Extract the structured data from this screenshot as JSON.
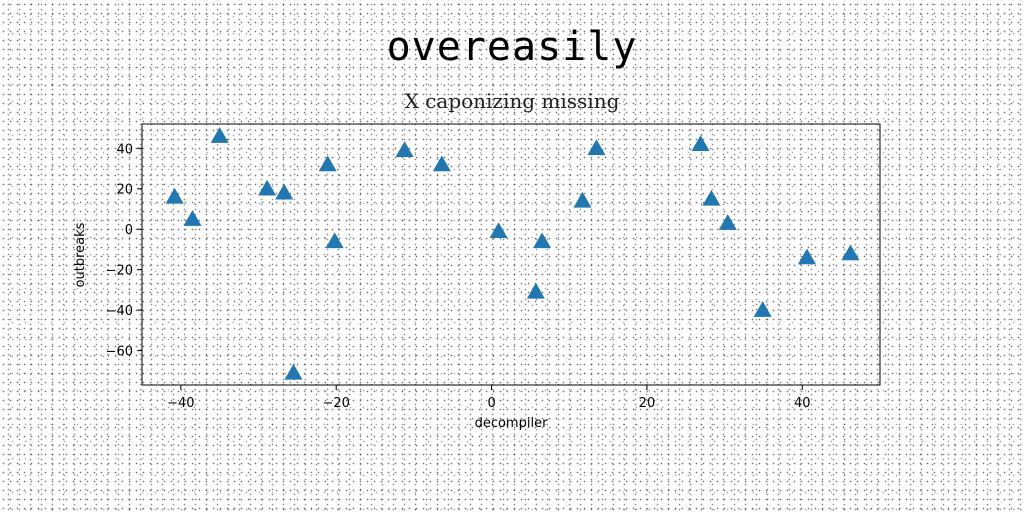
{
  "chart_data": {
    "type": "scatter",
    "title": "overeasily",
    "subtitle": "X caponizing missing",
    "xlabel": "decompiler",
    "ylabel": "outbreaks",
    "xlim": [
      -45,
      50
    ],
    "ylim": [
      -77,
      52
    ],
    "xticks": [
      -40,
      -20,
      0,
      20,
      40
    ],
    "yticks": [
      40,
      20,
      0,
      -20,
      -40,
      -60
    ],
    "marker": "triangle",
    "marker_color": "#1f77b4",
    "grid": false,
    "series": [
      {
        "points": [
          {
            "x": -40.8,
            "y": 16
          },
          {
            "x": -38.5,
            "y": 5
          },
          {
            "x": -35.0,
            "y": 46
          },
          {
            "x": -28.9,
            "y": 20
          },
          {
            "x": -26.7,
            "y": 18
          },
          {
            "x": -25.5,
            "y": -71
          },
          {
            "x": -21.1,
            "y": 32
          },
          {
            "x": -20.2,
            "y": -6
          },
          {
            "x": -11.2,
            "y": 39
          },
          {
            "x": -6.4,
            "y": 32
          },
          {
            "x": 0.9,
            "y": -1
          },
          {
            "x": 5.7,
            "y": -31
          },
          {
            "x": 6.5,
            "y": -6
          },
          {
            "x": 11.7,
            "y": 14
          },
          {
            "x": 13.5,
            "y": 40
          },
          {
            "x": 26.9,
            "y": 42
          },
          {
            "x": 28.3,
            "y": 15
          },
          {
            "x": 30.4,
            "y": 3
          },
          {
            "x": 34.9,
            "y": -40
          },
          {
            "x": 40.6,
            "y": -14
          },
          {
            "x": 46.2,
            "y": -12
          }
        ]
      }
    ]
  }
}
